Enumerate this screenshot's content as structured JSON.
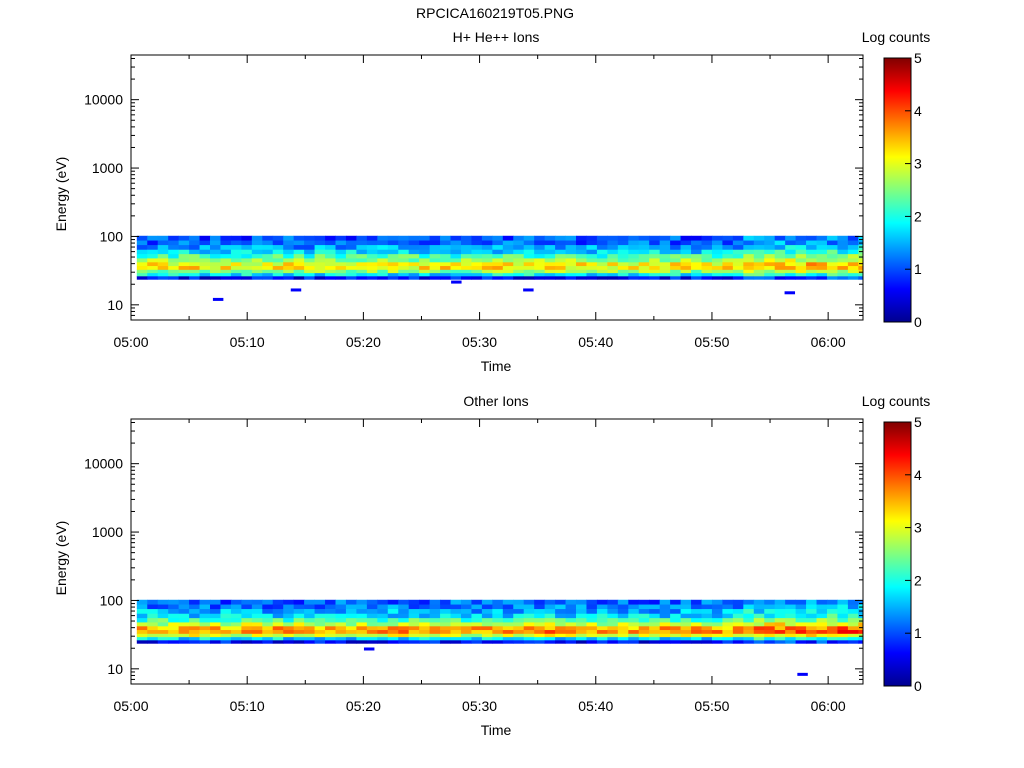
{
  "figure": {
    "title": "RPCICA160219T05.PNG"
  },
  "chart_data": [
    {
      "type": "heatmap",
      "title": "H+ He++ Ions",
      "xlabel": "Time",
      "ylabel": "Energy (eV)",
      "y_scale": "log",
      "x_range": [
        "05:00",
        "06:03"
      ],
      "y_range": [
        6,
        45000
      ],
      "x_ticks": [
        "05:00",
        "05:10",
        "05:20",
        "05:30",
        "05:40",
        "05:50",
        "06:00"
      ],
      "y_ticks": [
        "10",
        "100",
        "1000",
        "10000"
      ],
      "time_bins_minutes": [
        0.5,
        63.0,
        0.9
      ],
      "energy_rows_eV": [
        25,
        28,
        31,
        35,
        40,
        45,
        52,
        60,
        70,
        82,
        95
      ],
      "row_log_counts": [
        0.6,
        1.8,
        2.6,
        3.2,
        3.1,
        2.6,
        2.2,
        1.7,
        1.4,
        1.1,
        1.0
      ],
      "step_change_minute": 52.5,
      "step_change_delta": 0.3,
      "isolated_low_bins": [
        {
          "minute": 7.5,
          "energy": 12
        },
        {
          "minute": 14.2,
          "energy": 16.5
        },
        {
          "minute": 28.0,
          "energy": 21.5
        },
        {
          "minute": 34.2,
          "energy": 16.5
        },
        {
          "minute": 56.7,
          "energy": 15
        }
      ],
      "colorbar": {
        "label": "Log counts",
        "range": [
          0,
          5
        ],
        "ticks": [
          "0",
          "1",
          "2",
          "3",
          "4",
          "5"
        ]
      }
    },
    {
      "type": "heatmap",
      "title": "Other Ions",
      "xlabel": "Time",
      "ylabel": "Energy (eV)",
      "y_scale": "log",
      "x_range": [
        "05:00",
        "06:03"
      ],
      "y_range": [
        6,
        45000
      ],
      "x_ticks": [
        "05:00",
        "05:10",
        "05:20",
        "05:30",
        "05:40",
        "05:50",
        "06:00"
      ],
      "y_ticks": [
        "10",
        "100",
        "1000",
        "10000"
      ],
      "time_bins_minutes": [
        0.5,
        63.0,
        0.9
      ],
      "energy_rows_eV": [
        25,
        28,
        31,
        35,
        40,
        45,
        52,
        60,
        70,
        82,
        95
      ],
      "row_log_counts": [
        0.6,
        1.7,
        2.9,
        3.7,
        3.5,
        2.8,
        2.2,
        1.7,
        1.5,
        1.2,
        1.1
      ],
      "step_change_minute": 52.5,
      "step_change_delta": 0.3,
      "isolated_low_bins": [
        {
          "minute": 20.5,
          "energy": 19.5
        },
        {
          "minute": 57.8,
          "energy": 8.3
        }
      ],
      "colorbar": {
        "label": "Log counts",
        "range": [
          0,
          5
        ],
        "ticks": [
          "0",
          "1",
          "2",
          "3",
          "4",
          "5"
        ]
      }
    }
  ]
}
